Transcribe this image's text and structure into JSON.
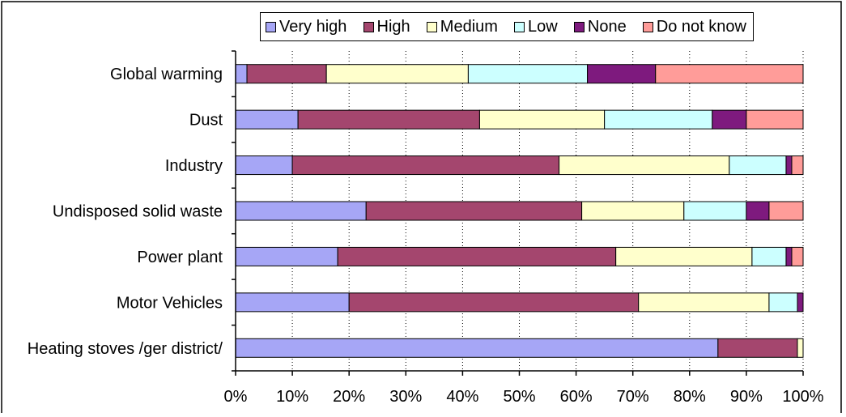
{
  "chart_data": {
    "type": "bar",
    "orientation": "horizontal",
    "stacked": true,
    "title": "",
    "xlabel": "",
    "ylabel": "",
    "xlim": [
      0,
      100
    ],
    "x_ticks": [
      "0%",
      "10%",
      "20%",
      "30%",
      "40%",
      "50%",
      "60%",
      "70%",
      "80%",
      "90%",
      "100%"
    ],
    "grid": "vertical dotted",
    "legend_position": "top",
    "categories": [
      "Global warming",
      "Dust",
      "Industry",
      "Undisposed solid waste",
      "Power plant",
      "Motor Vehicles",
      "Heating stoves /ger district/"
    ],
    "series": [
      {
        "name": "Very high",
        "color": "#a6a6f6",
        "values": [
          2,
          11,
          10,
          23,
          18,
          20,
          85
        ]
      },
      {
        "name": "High",
        "color": "#a4466e",
        "values": [
          14,
          32,
          47,
          38,
          49,
          51,
          14
        ]
      },
      {
        "name": "Medium",
        "color": "#ffffcc",
        "values": [
          25,
          22,
          30,
          18,
          24,
          23,
          1
        ]
      },
      {
        "name": "Low",
        "color": "#ccffff",
        "values": [
          21,
          19,
          10,
          11,
          6,
          5,
          0
        ]
      },
      {
        "name": "None",
        "color": "#7e1a7e",
        "values": [
          12,
          6,
          1,
          4,
          1,
          1,
          0
        ]
      },
      {
        "name": "Do not know",
        "color": "#ff9c99",
        "values": [
          26,
          10,
          2,
          6,
          2,
          0,
          0
        ]
      }
    ]
  }
}
